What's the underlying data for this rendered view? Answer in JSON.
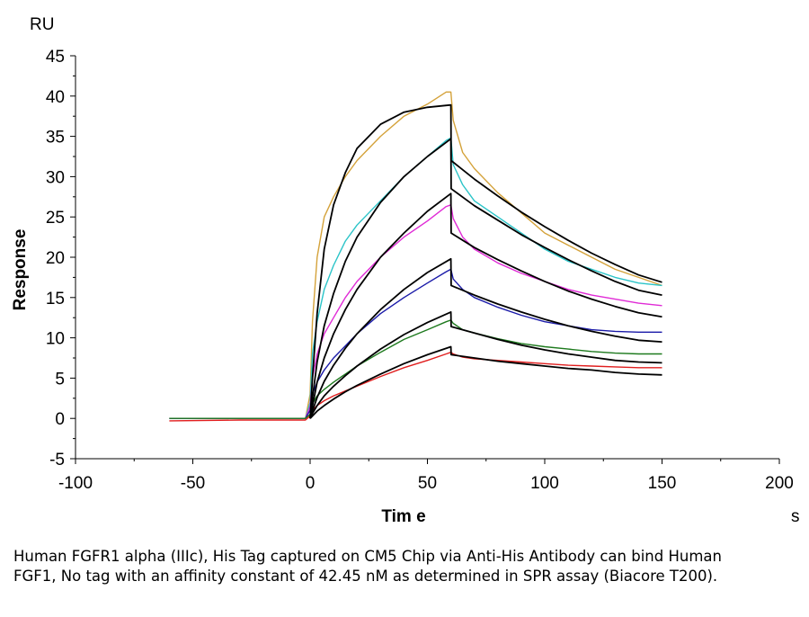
{
  "chart_data": {
    "type": "line",
    "y_unit": "RU",
    "x_unit": "s",
    "xlabel": "Tim e",
    "ylabel": "Response",
    "xlim": [
      -100,
      200
    ],
    "ylim": [
      -5,
      45
    ],
    "x_ticks": [
      -100,
      -50,
      0,
      50,
      100,
      150,
      200
    ],
    "y_ticks": [
      -5,
      0,
      5,
      10,
      15,
      20,
      25,
      30,
      35,
      40,
      45
    ],
    "grid": false,
    "series": [
      {
        "color": "#d4a23a",
        "x": [
          -60,
          -30,
          -2,
          0,
          1,
          3,
          6,
          10,
          15,
          20,
          30,
          40,
          50,
          58,
          60,
          61,
          65,
          70,
          80,
          90,
          100,
          110,
          120,
          130,
          140,
          150
        ],
        "y": [
          0,
          0,
          0,
          3,
          12,
          20,
          25,
          27.5,
          30,
          32,
          35,
          37.5,
          39,
          40.5,
          40.5,
          37,
          33,
          31,
          28,
          25.5,
          23,
          21.5,
          20,
          18.5,
          17.5,
          16.5
        ]
      },
      {
        "color": "#2bc4c8",
        "x": [
          -60,
          -30,
          -2,
          0,
          1,
          3,
          6,
          10,
          15,
          20,
          30,
          40,
          50,
          58,
          60,
          61,
          65,
          70,
          80,
          90,
          100,
          110,
          120,
          130,
          140,
          150
        ],
        "y": [
          0,
          0,
          0,
          2,
          8,
          12,
          16,
          19,
          22,
          24,
          27,
          30,
          32.5,
          34.5,
          34.8,
          31.5,
          29,
          27,
          25,
          23,
          21,
          19.5,
          18.5,
          17.5,
          16.8,
          16.5
        ]
      },
      {
        "color": "#e02bd6",
        "x": [
          -60,
          -30,
          -2,
          0,
          1,
          3,
          6,
          10,
          15,
          20,
          30,
          40,
          50,
          58,
          60,
          61,
          65,
          70,
          80,
          90,
          100,
          110,
          120,
          130,
          140,
          150
        ],
        "y": [
          0,
          0,
          0,
          1.5,
          5,
          8,
          10.5,
          12.5,
          15,
          17,
          20,
          22.5,
          24.5,
          26.3,
          26.5,
          24.8,
          22.5,
          21,
          19.3,
          18,
          17,
          16,
          15.3,
          14.8,
          14.3,
          14
        ]
      },
      {
        "color": "#1a1aa8",
        "x": [
          -60,
          -30,
          -2,
          0,
          1,
          3,
          6,
          10,
          15,
          20,
          30,
          40,
          50,
          58,
          60,
          61,
          65,
          70,
          80,
          90,
          100,
          110,
          120,
          130,
          140,
          150
        ],
        "y": [
          0,
          0,
          0,
          1,
          3,
          4.5,
          6,
          7.5,
          9,
          10.5,
          13,
          15,
          16.8,
          18.2,
          18.5,
          17.3,
          16,
          15,
          13.8,
          12.8,
          12,
          11.5,
          11,
          10.8,
          10.7,
          10.7
        ]
      },
      {
        "color": "#1e7a1e",
        "x": [
          -60,
          -30,
          -2,
          0,
          1,
          3,
          6,
          10,
          15,
          20,
          30,
          40,
          50,
          58,
          60,
          61,
          65,
          70,
          80,
          90,
          100,
          110,
          120,
          130,
          140,
          150
        ],
        "y": [
          0,
          0,
          0,
          0.5,
          1.8,
          2.8,
          3.6,
          4.5,
          5.5,
          6.5,
          8.2,
          9.8,
          11,
          12,
          12.2,
          11.8,
          11,
          10.6,
          9.9,
          9.3,
          8.9,
          8.6,
          8.3,
          8.1,
          8,
          8
        ]
      },
      {
        "color": "#e01e1e",
        "x": [
          -60,
          -30,
          -2,
          0,
          1,
          3,
          6,
          10,
          15,
          20,
          30,
          40,
          50,
          58,
          60,
          61,
          65,
          70,
          80,
          90,
          100,
          110,
          120,
          130,
          140,
          150
        ],
        "y": [
          -0.3,
          -0.2,
          -0.2,
          0.3,
          1,
          1.6,
          2.2,
          2.8,
          3.4,
          4,
          5.2,
          6.3,
          7.2,
          8,
          8.2,
          8,
          7.6,
          7.4,
          7.2,
          7,
          6.8,
          6.6,
          6.5,
          6.4,
          6.3,
          6.3
        ]
      },
      {
        "color": "#000000",
        "x": [
          0,
          1,
          3,
          6,
          10,
          15,
          20,
          30,
          40,
          50,
          60,
          60.1,
          70,
          80,
          90,
          100,
          110,
          120,
          130,
          140,
          150
        ],
        "y": [
          0,
          5,
          13,
          21,
          26.5,
          30.5,
          33.5,
          36.5,
          38,
          38.6,
          38.9,
          32,
          29.7,
          27.6,
          25.6,
          23.8,
          22.1,
          20.5,
          19.1,
          17.8,
          16.9
        ]
      },
      {
        "color": "#000000",
        "x": [
          0,
          1,
          3,
          6,
          10,
          15,
          20,
          30,
          40,
          50,
          60,
          60.1,
          70,
          80,
          90,
          100,
          110,
          120,
          130,
          140,
          150
        ],
        "y": [
          0,
          2.5,
          7,
          11.5,
          15.5,
          19.5,
          22.5,
          26.8,
          30,
          32.5,
          34.7,
          28.5,
          26.4,
          24.6,
          22.8,
          21.2,
          19.7,
          18.3,
          17,
          15.9,
          15.3
        ]
      },
      {
        "color": "#000000",
        "x": [
          0,
          1,
          3,
          6,
          10,
          15,
          20,
          30,
          40,
          50,
          60,
          60.1,
          70,
          80,
          90,
          100,
          110,
          120,
          130,
          140,
          150
        ],
        "y": [
          0,
          1.5,
          4.5,
          7.5,
          10.5,
          13.5,
          16,
          20,
          23,
          25.7,
          27.9,
          23,
          21.2,
          19.7,
          18.3,
          17,
          15.8,
          14.8,
          13.9,
          13.1,
          12.6
        ]
      },
      {
        "color": "#000000",
        "x": [
          0,
          1,
          3,
          6,
          10,
          15,
          20,
          30,
          40,
          50,
          60,
          60.1,
          70,
          80,
          90,
          100,
          110,
          120,
          130,
          140,
          150
        ],
        "y": [
          0,
          0.9,
          2.6,
          4.6,
          6.6,
          8.7,
          10.5,
          13.5,
          16,
          18.1,
          19.8,
          16.5,
          15.3,
          14.2,
          13.2,
          12.3,
          11.5,
          10.8,
          10.2,
          9.7,
          9.5
        ]
      },
      {
        "color": "#000000",
        "x": [
          0,
          1,
          3,
          6,
          10,
          15,
          20,
          30,
          40,
          50,
          60,
          60.1,
          70,
          80,
          90,
          100,
          110,
          120,
          130,
          140,
          150
        ],
        "y": [
          0,
          0.6,
          1.6,
          2.8,
          4,
          5.3,
          6.5,
          8.6,
          10.4,
          11.9,
          13.2,
          11.4,
          10.6,
          9.8,
          9.1,
          8.5,
          8,
          7.6,
          7.2,
          7,
          6.9
        ]
      },
      {
        "color": "#000000",
        "x": [
          0,
          1,
          3,
          6,
          10,
          15,
          20,
          30,
          40,
          50,
          60,
          60.1,
          70,
          80,
          90,
          100,
          110,
          120,
          130,
          140,
          150
        ],
        "y": [
          0,
          0.3,
          0.9,
          1.6,
          2.4,
          3.3,
          4.1,
          5.5,
          6.8,
          7.9,
          8.9,
          7.9,
          7.5,
          7.1,
          6.8,
          6.5,
          6.2,
          6,
          5.7,
          5.5,
          5.4
        ]
      }
    ]
  },
  "caption": "Human FGFR1 alpha (IIIc), His Tag captured on CM5 Chip via Anti-His Antibody can bind Human FGF1, No tag with an affinity constant of 42.45 nM as determined in SPR assay (Biacore T200)."
}
